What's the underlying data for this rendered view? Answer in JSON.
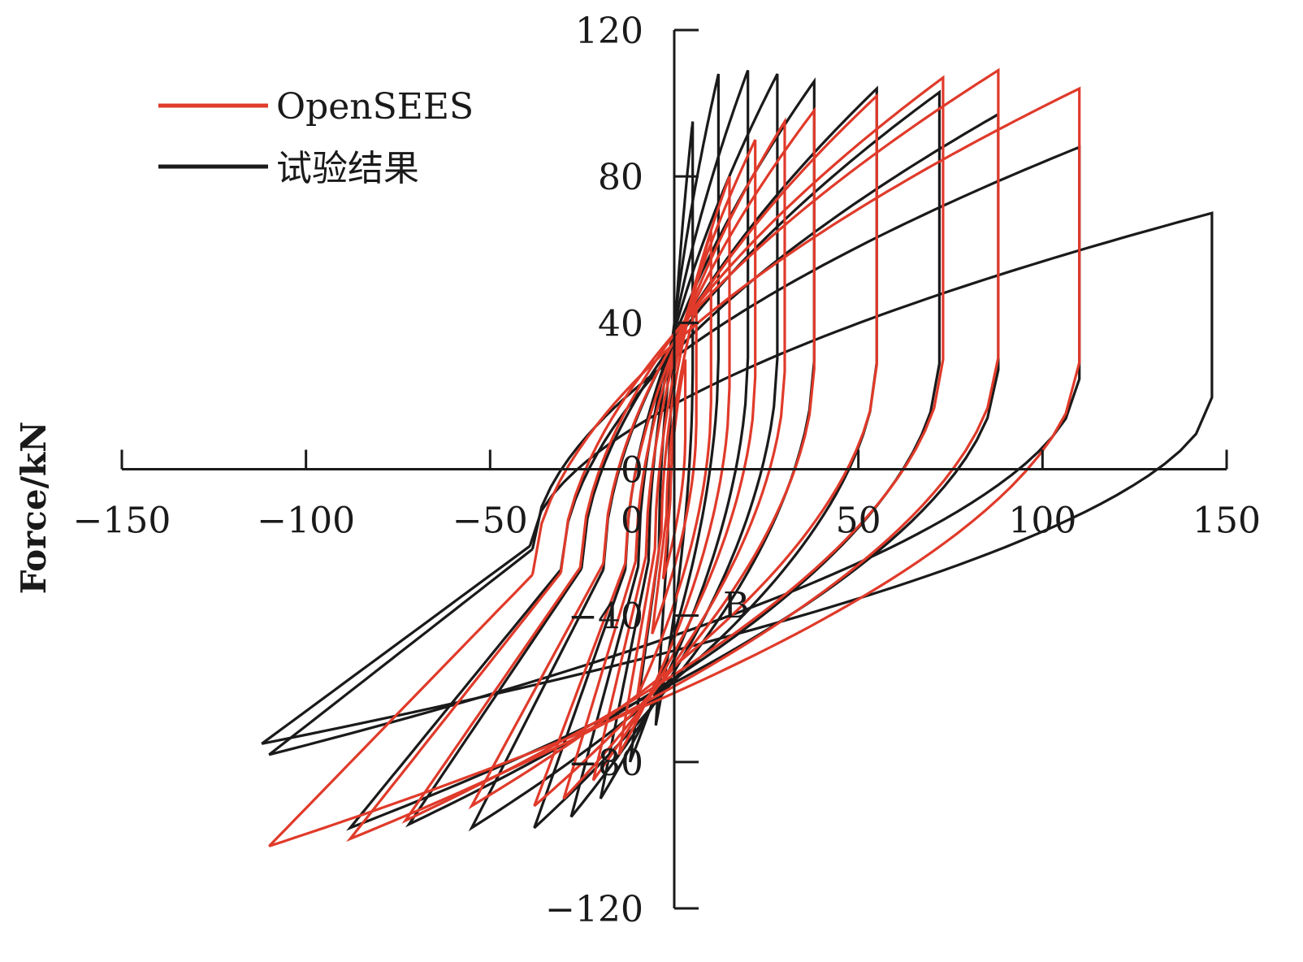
{
  "chart_data": {
    "type": "line",
    "xlabel": "",
    "ylabel": "Force/kN",
    "xlim": [
      -150,
      150
    ],
    "ylim": [
      -120,
      120
    ],
    "x_ticks": [
      "−150",
      "−100",
      "−50",
      "0",
      "50",
      "100",
      "150"
    ],
    "y_ticks": [
      "120",
      "80",
      "40",
      "0",
      "−40",
      "−80",
      "−120"
    ],
    "annotation": "B",
    "legend": {
      "placement": "top-left",
      "entries": [
        "OpenSEES",
        "试验结果"
      ]
    },
    "colors": {
      "OpenSEES": "#e03a2a",
      "试验结果": "#1a1a1a"
    },
    "series": [
      {
        "name": "OpenSEES",
        "cycles": [
          {
            "d": 3,
            "fpos": 30,
            "fneg": -30
          },
          {
            "d": 6,
            "fpos": 45,
            "fneg": -45
          },
          {
            "d": 10,
            "fpos": 65,
            "fneg": -62
          },
          {
            "d": 15,
            "fpos": 80,
            "fneg": -78
          },
          {
            "d": 22,
            "fpos": 90,
            "fneg": -85
          },
          {
            "d": 30,
            "fpos": 95,
            "fneg": -90
          },
          {
            "d": 38,
            "fpos": 98,
            "fneg": -92
          },
          {
            "d": 55,
            "fpos": 102,
            "fneg": -92
          },
          {
            "d": 73,
            "fpos": 107,
            "fneg": -96
          },
          {
            "d": 88,
            "fpos": 109,
            "fneg": -101
          },
          {
            "d": 110,
            "fpos": 104,
            "fneg": -103
          }
        ]
      },
      {
        "name": "试验结果",
        "cycles": [
          {
            "d": 5,
            "fpos": 95,
            "fneg": -70
          },
          {
            "d": 12,
            "fpos": 108,
            "fneg": -80
          },
          {
            "d": 20,
            "fpos": 109,
            "fneg": -90
          },
          {
            "d": 28,
            "fpos": 108,
            "fneg": -95
          },
          {
            "d": 38,
            "fpos": 106,
            "fneg": -98
          },
          {
            "d": 55,
            "fpos": 104,
            "fneg": -98
          },
          {
            "d": 72,
            "fpos": 103,
            "fneg": -97
          },
          {
            "d": 88,
            "fpos": 97,
            "fneg": -98
          },
          {
            "d": 110,
            "fpos": 88,
            "fneg": -78
          },
          {
            "d": 146,
            "fpos": 70,
            "fneg": -75
          }
        ]
      }
    ]
  }
}
